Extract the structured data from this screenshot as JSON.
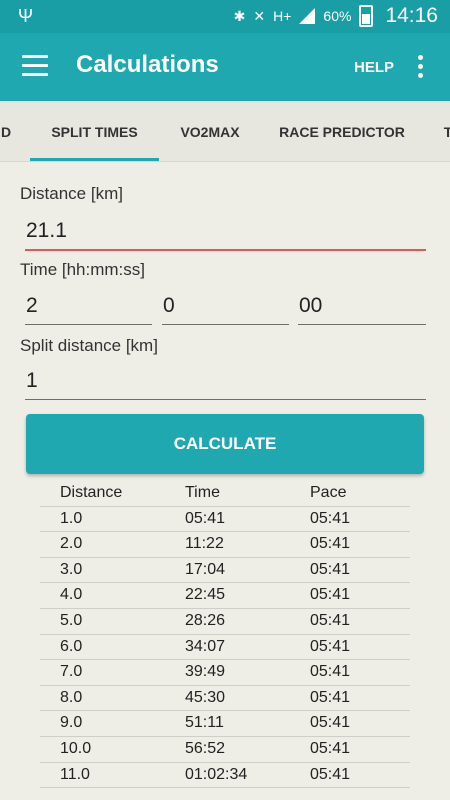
{
  "statusbar": {
    "usb_icon": "usb-icon",
    "network": "H+",
    "battery": "60%",
    "time": "14:16"
  },
  "toolbar": {
    "title": "Calculations",
    "help": "HELP"
  },
  "tabs": [
    "D",
    "SPLIT TIMES",
    "VO2MAX",
    "RACE PREDICTOR",
    "T"
  ],
  "active_tab": "SPLIT TIMES",
  "accent_color": "#1fa8b0",
  "form": {
    "distance_label": "Distance [km]",
    "distance_value": "21.1",
    "time_label": "Time [hh:mm:ss]",
    "hours": "2",
    "minutes": "0",
    "seconds": "00",
    "split_label": "Split distance [km]",
    "split_value": "1",
    "calculate": "CALCULATE"
  },
  "table": {
    "headers": [
      "Distance",
      "Time",
      "Pace"
    ],
    "rows": [
      [
        "1.0",
        "05:41",
        "05:41"
      ],
      [
        "2.0",
        "11:22",
        "05:41"
      ],
      [
        "3.0",
        "17:04",
        "05:41"
      ],
      [
        "4.0",
        "22:45",
        "05:41"
      ],
      [
        "5.0",
        "28:26",
        "05:41"
      ],
      [
        "6.0",
        "34:07",
        "05:41"
      ],
      [
        "7.0",
        "39:49",
        "05:41"
      ],
      [
        "8.0",
        "45:30",
        "05:41"
      ],
      [
        "9.0",
        "51:11",
        "05:41"
      ],
      [
        "10.0",
        "56:52",
        "05:41"
      ],
      [
        "11.0",
        "01:02:34",
        "05:41"
      ]
    ]
  }
}
